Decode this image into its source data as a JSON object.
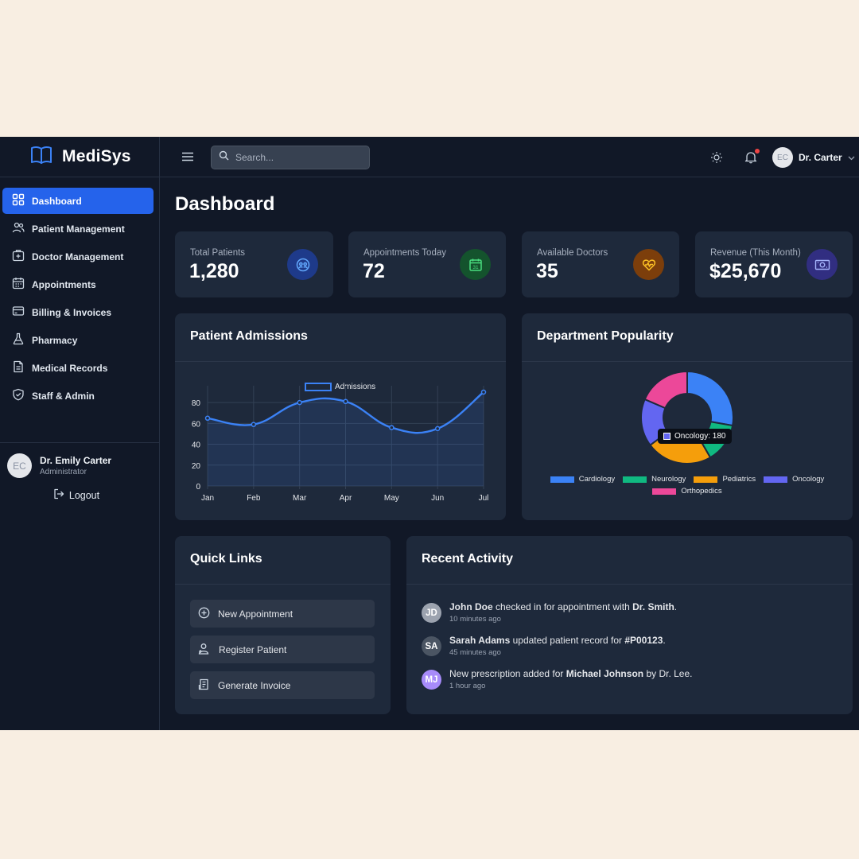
{
  "app": {
    "name": "MediSys"
  },
  "sidebar": {
    "items": [
      {
        "label": "Dashboard",
        "icon": "grid-icon",
        "active": true
      },
      {
        "label": "Patient Management",
        "icon": "users-icon"
      },
      {
        "label": "Doctor Management",
        "icon": "medical-case-icon"
      },
      {
        "label": "Appointments",
        "icon": "calendar-icon"
      },
      {
        "label": "Billing & Invoices",
        "icon": "credit-card-icon"
      },
      {
        "label": "Pharmacy",
        "icon": "flask-icon"
      },
      {
        "label": "Medical Records",
        "icon": "document-icon"
      },
      {
        "label": "Staff & Admin",
        "icon": "shield-icon"
      }
    ],
    "user": {
      "initials": "EC",
      "name": "Dr. Emily Carter",
      "role": "Administrator"
    },
    "logout_label": "Logout"
  },
  "topbar": {
    "search_placeholder": "Search...",
    "user_initials": "EC",
    "user_name": "Dr. Carter"
  },
  "page": {
    "title": "Dashboard"
  },
  "stats": [
    {
      "label": "Total Patients",
      "value": "1,280",
      "icon": "users-icon",
      "color": "#3b82f6"
    },
    {
      "label": "Appointments Today",
      "value": "72",
      "icon": "calendar-icon",
      "color": "#22c55e"
    },
    {
      "label": "Available Doctors",
      "value": "35",
      "icon": "heart-pulse-icon",
      "color": "#f59e0b"
    },
    {
      "label": "Revenue (This Month)",
      "value": "$25,670",
      "icon": "cash-icon",
      "color": "#6366f1"
    }
  ],
  "admissions": {
    "title": "Patient Admissions",
    "chart_data": {
      "type": "line",
      "title": "",
      "categories": [
        "Jan",
        "Feb",
        "Mar",
        "Apr",
        "May",
        "Jun",
        "Jul"
      ],
      "series": [
        {
          "name": "Admissions",
          "values": [
            65,
            59,
            80,
            81,
            56,
            55,
            90
          ],
          "color": "#3b82f6"
        }
      ],
      "yticks": [
        "0",
        "20",
        "40",
        "60",
        "80"
      ],
      "ylim": [
        0,
        90
      ],
      "grid": true,
      "legend": "top"
    }
  },
  "departments": {
    "title": "Department Popularity",
    "chart_data": {
      "type": "pie",
      "categories": [
        "Cardiology",
        "Neurology",
        "Pediatrics",
        "Oncology",
        "Orthopedics"
      ],
      "values": [
        300,
        150,
        250,
        180,
        200
      ],
      "colors": [
        "#3b82f6",
        "#10b981",
        "#f59e0b",
        "#6366f1",
        "#ec4899"
      ],
      "legend": "bottom"
    },
    "tooltip": "Oncology: 180"
  },
  "quick_links": {
    "title": "Quick Links",
    "items": [
      {
        "label": "New Appointment",
        "icon": "plus-circle-icon"
      },
      {
        "label": "Register Patient",
        "icon": "user-plus-icon"
      },
      {
        "label": "Generate Invoice",
        "icon": "invoice-icon"
      }
    ]
  },
  "activity": {
    "title": "Recent Activity",
    "items": [
      {
        "initials": "JD",
        "color": "#9ca3af",
        "name": "John Doe",
        "text": " checked in for appointment with ",
        "target": "Dr. Smith",
        "end": ".",
        "time": "10 minutes ago"
      },
      {
        "initials": "SA",
        "color": "#4b5563",
        "name": "Sarah Adams",
        "text": " updated patient record for ",
        "target": "#P00123",
        "end": ".",
        "time": "45 minutes ago"
      },
      {
        "initials": "MJ",
        "color": "#a78bfa",
        "name": "",
        "text": "New prescription added for ",
        "target": "Michael Johnson",
        "end": " by Dr. Lee.",
        "time": "1 hour ago"
      }
    ]
  }
}
